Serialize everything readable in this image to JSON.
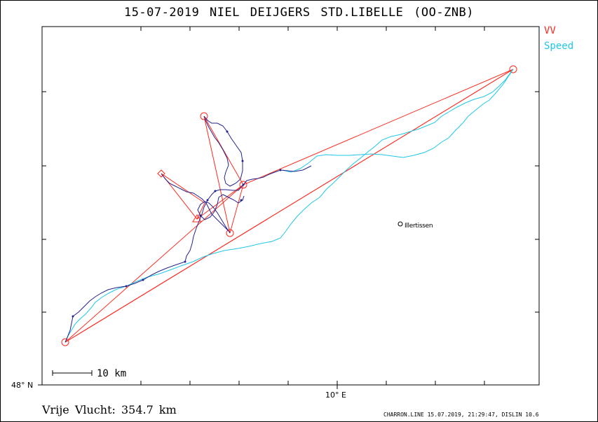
{
  "title": "15-07-2019    NIEL DEIJGERS    STD.LIBELLE (OO-ZNB)",
  "legend": {
    "vv_label": "VV",
    "speed_label": "Speed",
    "vv_color": "#ff2a1f",
    "speed_color": "#1ec8e6",
    "track_color": "#23238c"
  },
  "axes": {
    "lat_label": "48° N",
    "lon_label": "10° E"
  },
  "scale_bar": {
    "label": "10 km"
  },
  "place": {
    "name": "Illertissen"
  },
  "distance_text": "Vrije Vlucht:  354.7 km",
  "footer": "CHARRON.LINE 15.07.2019, 21:29:47, DISLIN 10.6"
}
